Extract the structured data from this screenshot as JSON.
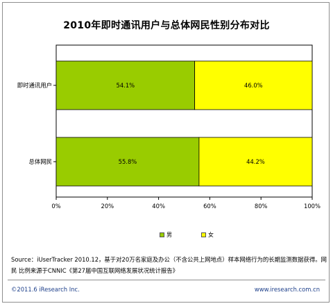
{
  "chart_data": {
    "type": "bar",
    "orientation": "horizontal",
    "stacked": true,
    "title": "2010年即时通讯用户与总体网民性别分布对比",
    "categories": [
      "即时通讯用户",
      "总体网民"
    ],
    "series": [
      {
        "name": "男",
        "color": "#99cc00",
        "values": [
          54.1,
          55.8
        ],
        "labels": [
          "54.1%",
          "55.8%"
        ]
      },
      {
        "name": "女",
        "color": "#ffff00",
        "values": [
          46.0,
          44.2
        ],
        "labels": [
          "46.0%",
          "44.2%"
        ]
      }
    ],
    "xlim": [
      0,
      100
    ],
    "xticks": [
      "0%",
      "20%",
      "40%",
      "60%",
      "80%",
      "100%"
    ],
    "grid": false,
    "legend_position": "bottom"
  },
  "source_text": "Source：iUserTracker 2010.12，基于对20万名家庭及办公（不含公共上网地点）样本网络行为的长期监测数据获得。网民 比例来源于CNNIC《第27届中国互联网络发展状况统计报告》",
  "footer": {
    "copyright": "©2011.6 iResearch Inc.",
    "website": "www.iresearch.com.cn"
  }
}
